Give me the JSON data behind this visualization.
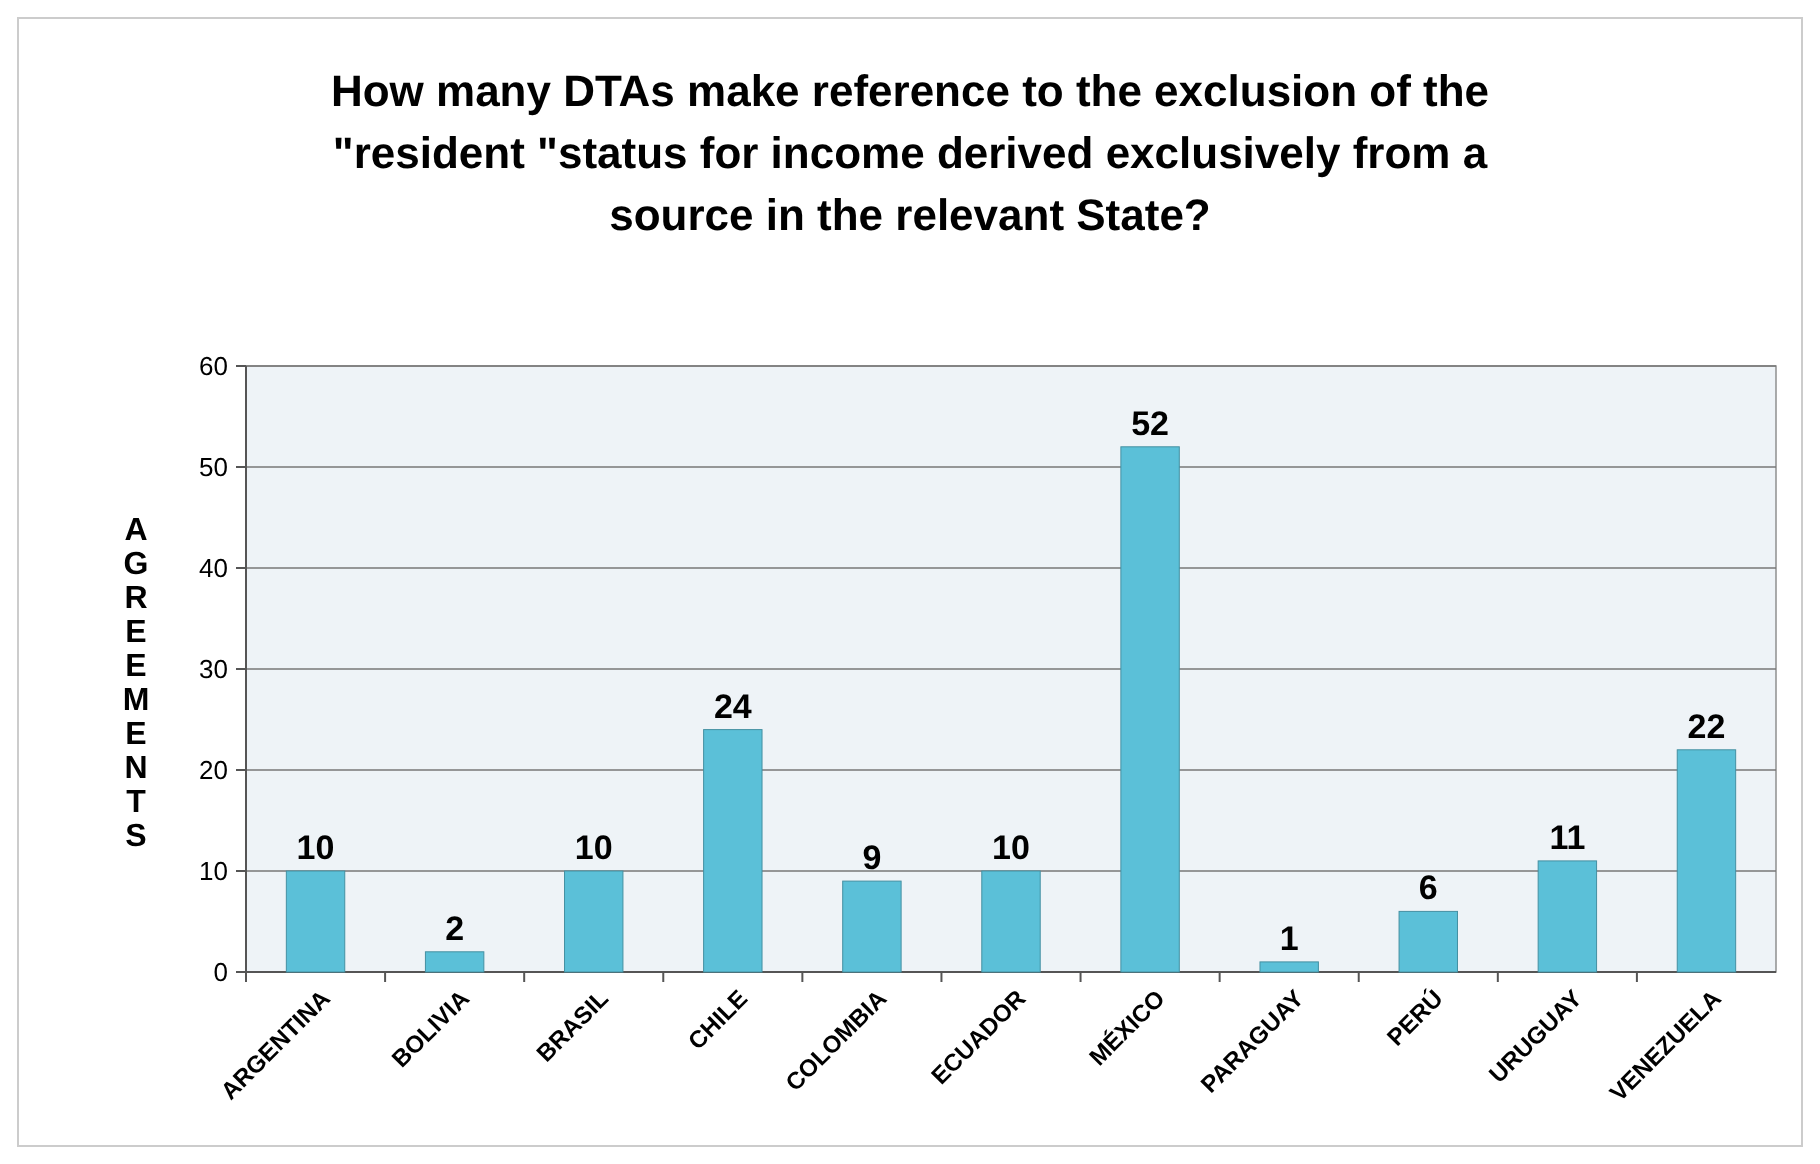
{
  "chart_data": {
    "type": "bar",
    "title": "How many DTAs make reference to the exclusion of the \"resident \"status for income derived exclusively from a source in the relevant State?",
    "ylabel": "AGREEMENTS",
    "categories": [
      "ARGENTINA",
      "BOLIVIA",
      "BRASIL",
      "CHILE",
      "COLOMBIA",
      "ECUADOR",
      "MÉXICO",
      "PARAGUAY",
      "PERÚ",
      "URUGUAY",
      "VENEZUELA"
    ],
    "values": [
      10,
      2,
      10,
      24,
      9,
      10,
      52,
      1,
      6,
      11,
      22
    ],
    "color": "#5bc0d8",
    "ylim": [
      0,
      60
    ],
    "yticks": [
      0,
      10,
      20,
      30,
      40,
      50,
      60
    ],
    "grid": "y",
    "data_labels": true
  }
}
